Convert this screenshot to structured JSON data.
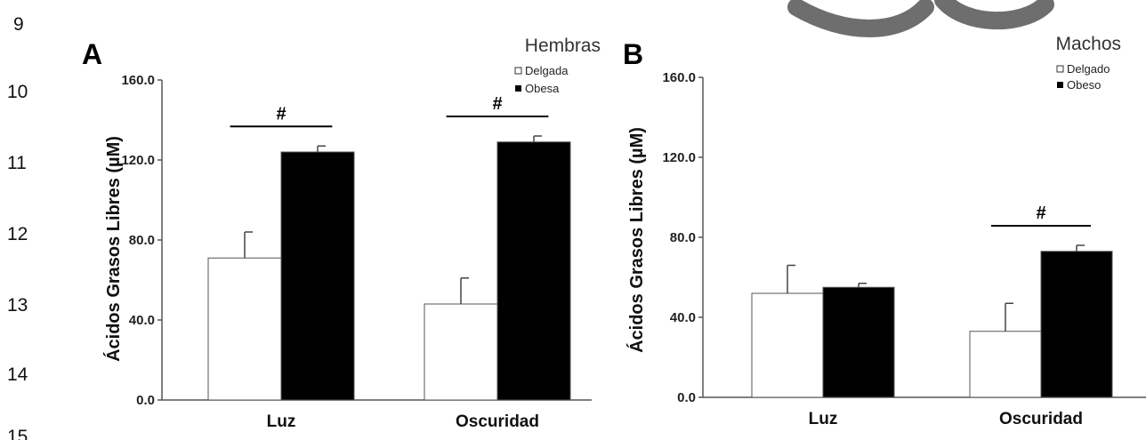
{
  "line_numbers": [
    "9",
    "10",
    "11",
    "12",
    "13",
    "14",
    "15"
  ],
  "colors": {
    "white_fill": "#ffffff",
    "black_fill": "#000000",
    "axis": "#555555",
    "watermark": "#6e6e6e"
  },
  "chart_data": [
    {
      "type": "bar",
      "panel": "A",
      "title": "",
      "legend": {
        "title": "Hembras",
        "entries": [
          "Delgada",
          "Obesa"
        ],
        "position": "top-right"
      },
      "ylabel": "Ácidos Grasos Libres (µM)",
      "xlabel": "",
      "ylim": [
        0,
        160
      ],
      "yticks": [
        "0.0",
        "40.0",
        "80.0",
        "120.0",
        "160.0"
      ],
      "categories": [
        "Luz",
        "Oscuridad"
      ],
      "series": [
        {
          "name": "Delgada",
          "color": "#ffffff",
          "values": [
            71,
            48
          ],
          "errors": [
            13,
            13
          ]
        },
        {
          "name": "Obesa",
          "color": "#000000",
          "values": [
            124,
            129
          ],
          "errors": [
            3,
            3
          ]
        }
      ],
      "significance": [
        {
          "category": "Luz",
          "label": "#"
        },
        {
          "category": "Oscuridad",
          "label": "#"
        }
      ]
    },
    {
      "type": "bar",
      "panel": "B",
      "title": "",
      "legend": {
        "title": "Machos",
        "entries": [
          "Delgado",
          "Obeso"
        ],
        "position": "top-right"
      },
      "ylabel": "Ácidos Grasos Libres (µM)",
      "xlabel": "",
      "ylim": [
        0,
        160
      ],
      "yticks": [
        "0.0",
        "40.0",
        "80.0",
        "120.0",
        "160.0"
      ],
      "categories": [
        "Luz",
        "Oscuridad"
      ],
      "series": [
        {
          "name": "Delgado",
          "color": "#ffffff",
          "values": [
            52,
            33
          ],
          "errors": [
            14,
            14
          ]
        },
        {
          "name": "Obeso",
          "color": "#000000",
          "values": [
            55,
            73
          ],
          "errors": [
            2,
            3
          ]
        }
      ],
      "significance": [
        {
          "category": "Oscuridad",
          "label": "#"
        }
      ]
    }
  ]
}
